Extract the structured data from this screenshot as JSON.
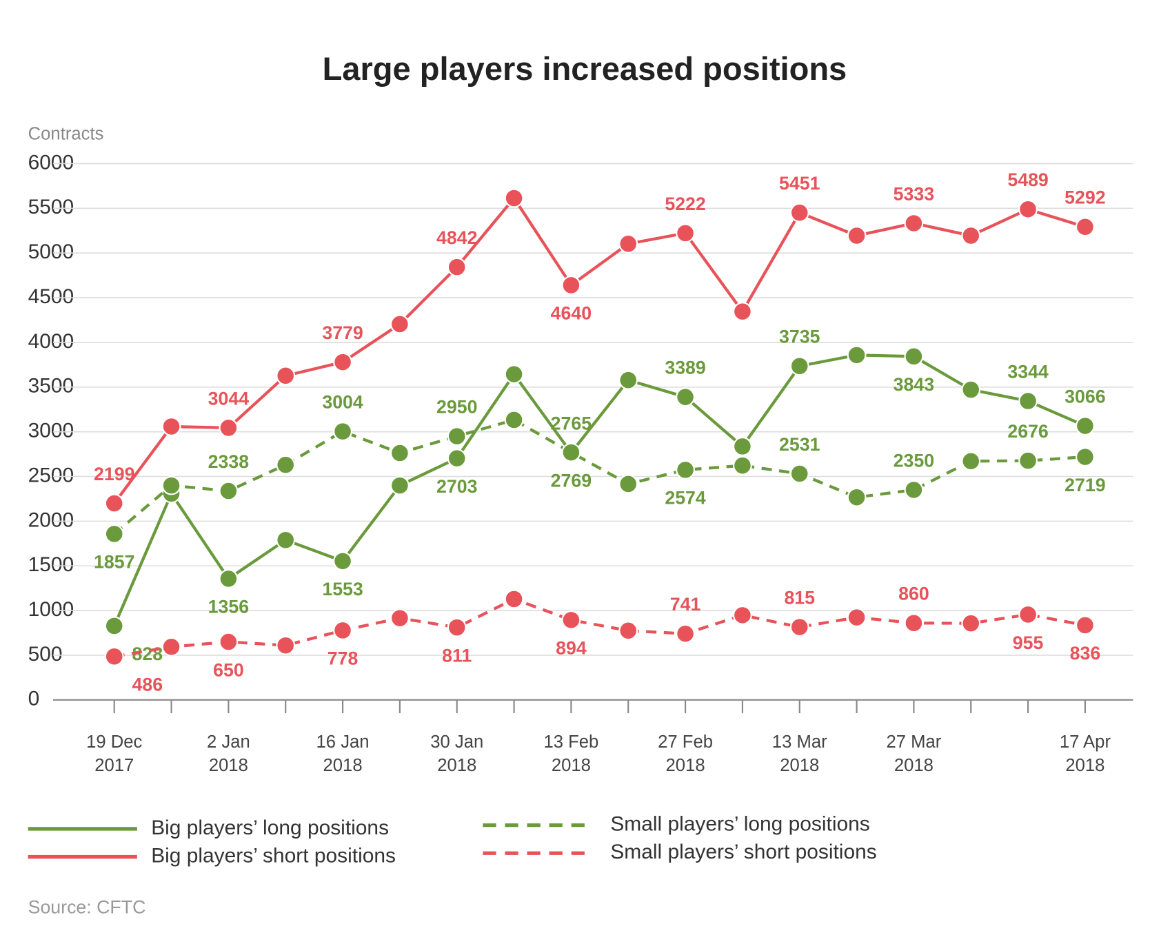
{
  "chart_data": {
    "type": "line",
    "title": "Large players increased positions",
    "y_label": "Contracts",
    "source": "Source: CFTC",
    "categories": [
      [
        "19 Dec",
        "2017"
      ],
      null,
      [
        "2 Jan",
        "2018"
      ],
      null,
      [
        "16 Jan",
        "2018"
      ],
      null,
      [
        "30 Jan",
        "2018"
      ],
      null,
      [
        "13 Feb",
        "2018"
      ],
      null,
      [
        "27 Feb",
        "2018"
      ],
      null,
      [
        "13 Mar",
        "2018"
      ],
      null,
      [
        "27 Mar",
        "2018"
      ],
      null,
      null,
      [
        "17 Apr",
        "2018"
      ]
    ],
    "ylim": [
      0,
      6000
    ],
    "yticks": [
      0,
      500,
      1000,
      1500,
      2000,
      2500,
      3000,
      3500,
      4000,
      4500,
      5000,
      5500,
      6000
    ],
    "grid": true,
    "series": [
      {
        "name": "Big players’ long positions",
        "color": "#6a9a3c",
        "dashed": false,
        "values": [
          828,
          2308,
          1356,
          1789,
          1553,
          2399,
          2703,
          3644,
          2765,
          3578,
          3389,
          2836,
          3735,
          3858,
          3843,
          3471,
          3344,
          3066
        ],
        "value_labels": [
          828,
          null,
          1356,
          null,
          1553,
          null,
          2703,
          null,
          2765,
          null,
          3389,
          null,
          3735,
          null,
          3843,
          null,
          3344,
          3066
        ]
      },
      {
        "name": "Big players’ short positions",
        "color": "#e8535a",
        "dashed": false,
        "values": [
          2199,
          3059,
          3044,
          3627,
          3779,
          4204,
          4842,
          5614,
          4640,
          5103,
          5222,
          4345,
          5451,
          5194,
          5333,
          5194,
          5489,
          5292
        ],
        "value_labels": [
          2199,
          null,
          3044,
          null,
          3779,
          null,
          4842,
          null,
          4640,
          null,
          5222,
          null,
          5451,
          null,
          5333,
          null,
          5489,
          5292
        ]
      },
      {
        "name": "Small players’ long positions",
        "color": "#6a9a3c",
        "dashed": true,
        "values": [
          1857,
          2399,
          2338,
          2630,
          3004,
          2762,
          2950,
          3133,
          2769,
          2416,
          2574,
          2622,
          2531,
          2267,
          2350,
          2671,
          2676,
          2719
        ],
        "value_labels": [
          1857,
          null,
          2338,
          null,
          3004,
          null,
          2950,
          null,
          2769,
          null,
          2574,
          null,
          2531,
          null,
          2350,
          null,
          2676,
          2719
        ]
      },
      {
        "name": "Small players’ short positions",
        "color": "#e8535a",
        "dashed": true,
        "values": [
          486,
          594,
          650,
          610,
          778,
          915,
          811,
          1129,
          894,
          775,
          741,
          948,
          815,
          923,
          860,
          857,
          955,
          836
        ],
        "value_labels": [
          486,
          null,
          650,
          null,
          778,
          null,
          811,
          null,
          894,
          null,
          741,
          null,
          815,
          null,
          860,
          null,
          955,
          836
        ]
      }
    ]
  }
}
